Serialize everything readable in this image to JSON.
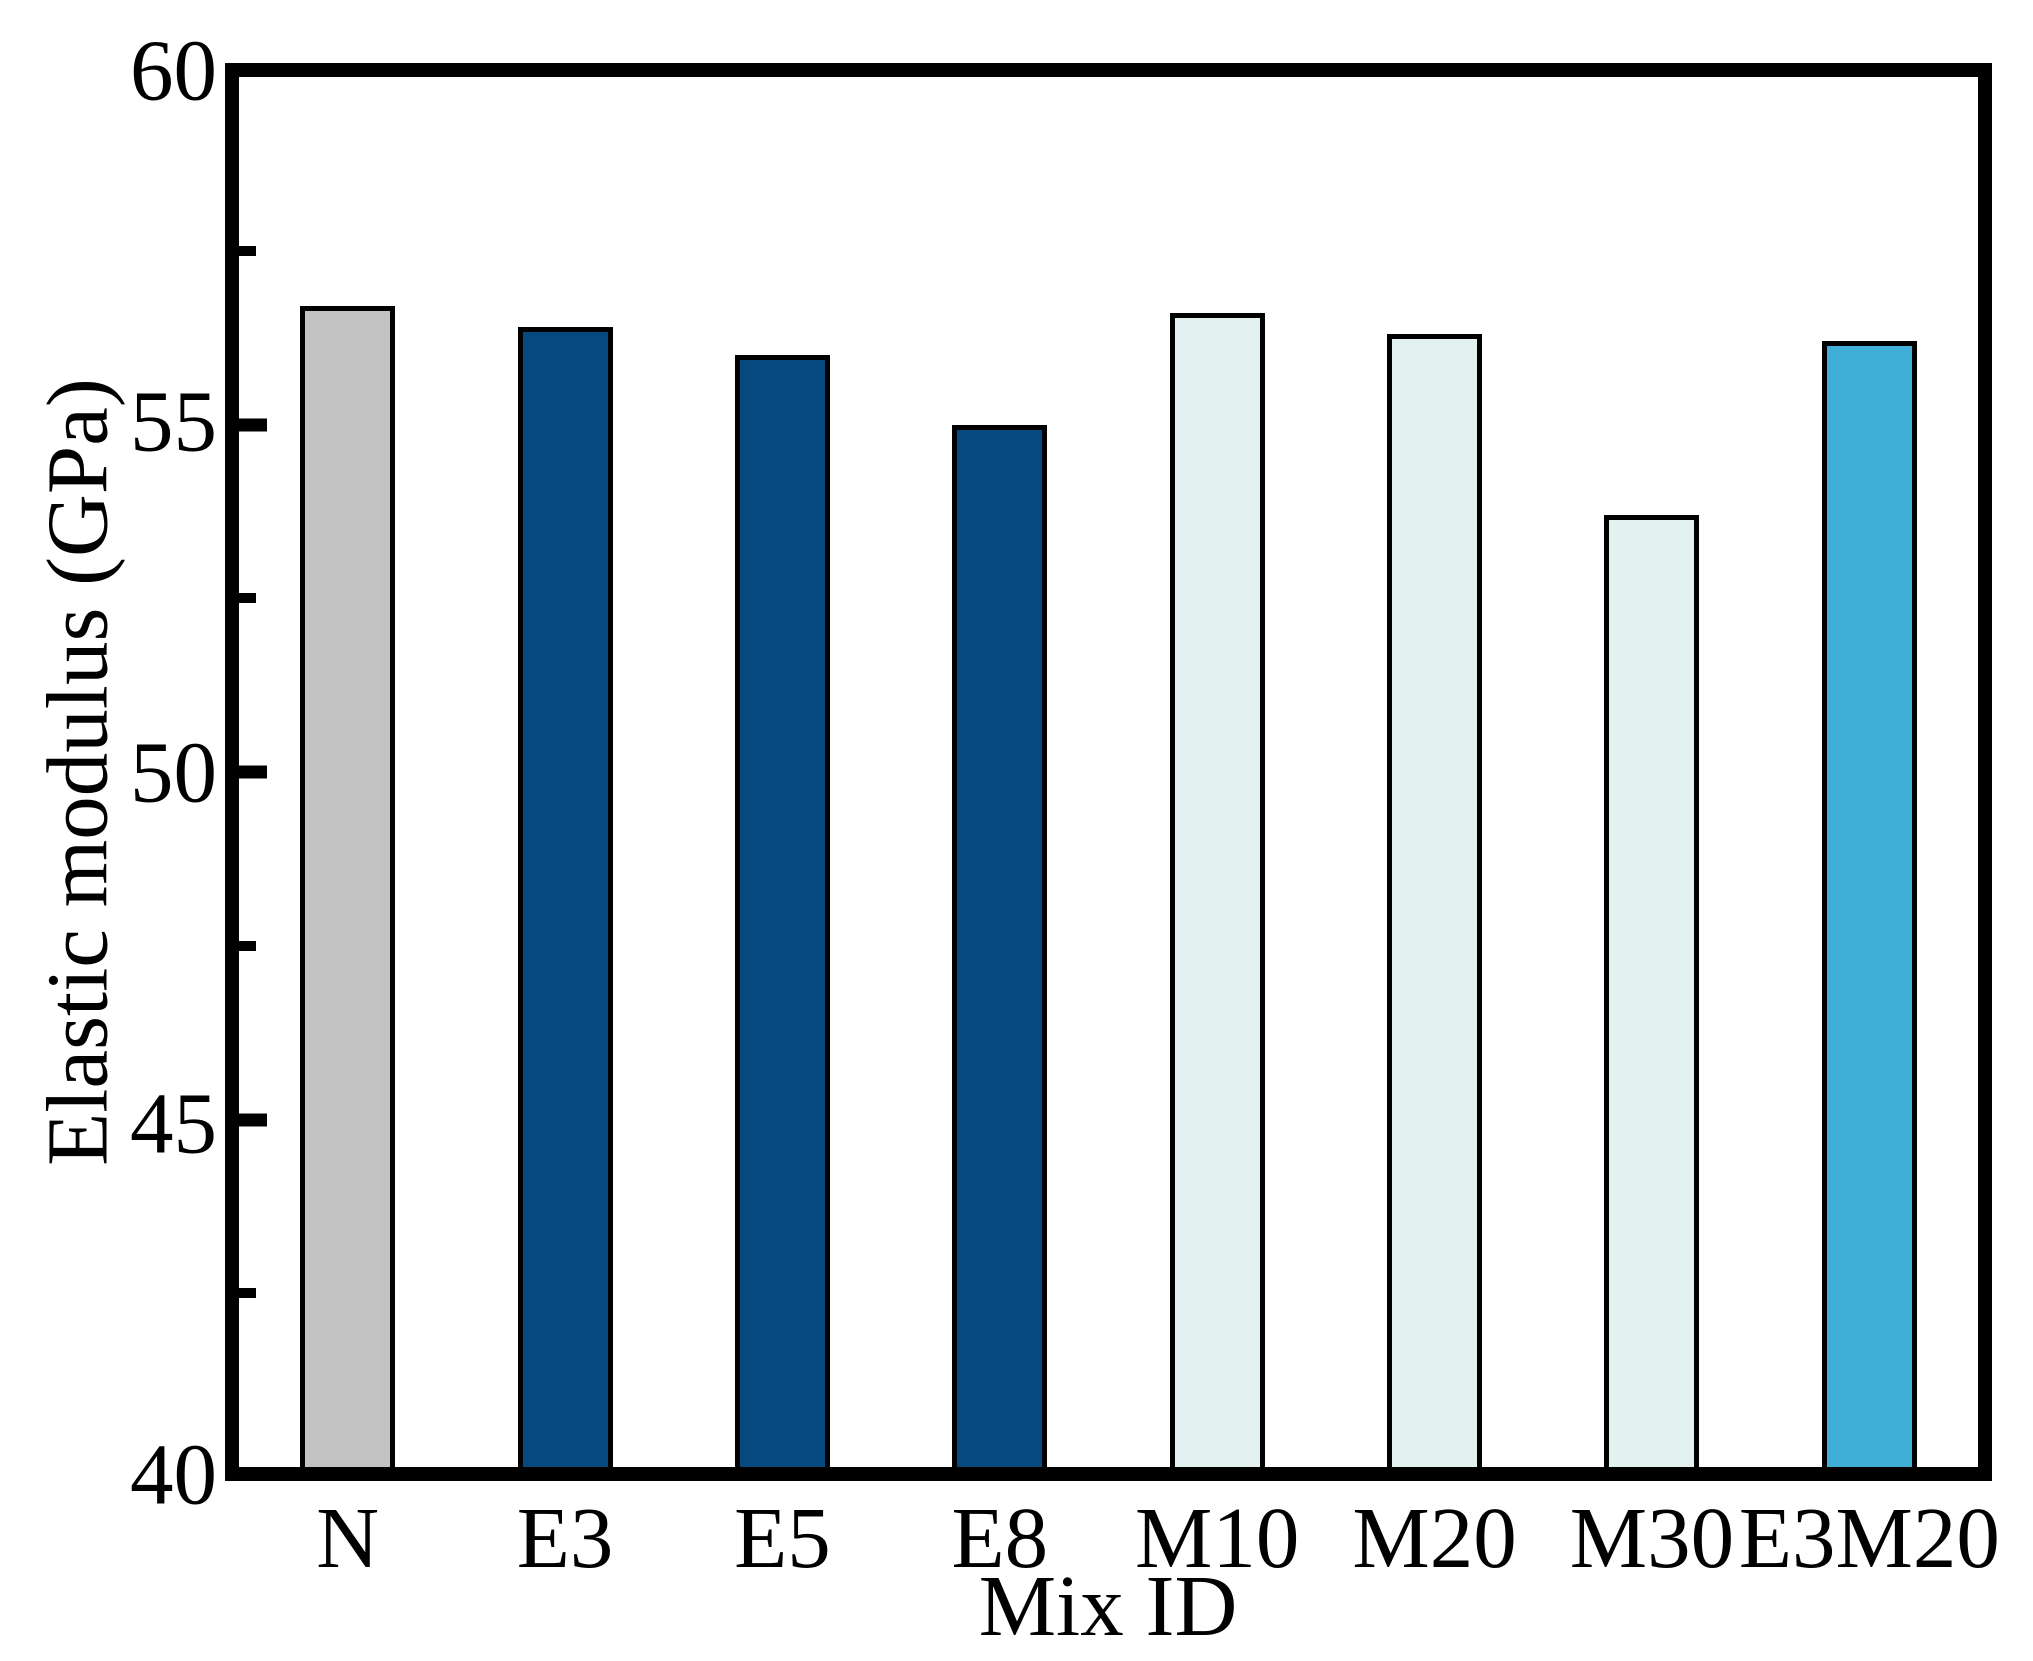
{
  "figure": {
    "background": "#ffffff",
    "text_color": "#000000",
    "axis_color": "#000000"
  },
  "chart_data": {
    "type": "bar",
    "title": "",
    "xlabel": "Mix ID",
    "ylabel": "Elastic modulus (GPa)",
    "categories": [
      "N",
      "E3",
      "E5",
      "E8",
      "M10",
      "M20",
      "M30",
      "E3M20"
    ],
    "values": [
      56.7,
      56.4,
      56.0,
      55.0,
      56.6,
      56.3,
      53.7,
      56.2
    ],
    "bar_colors": [
      "#c2c2c2",
      "#05497e",
      "#05497e",
      "#05497e",
      "#e3f1f1",
      "#e3f1f1",
      "#e3f1f1",
      "#3fafd8"
    ],
    "bar_outline_color": "#000000",
    "ylim": [
      40,
      60
    ],
    "yticks": [
      40,
      45,
      50,
      55,
      60
    ],
    "ytick_labels": [
      "40",
      "45",
      "50",
      "55",
      "60"
    ],
    "yticks_minor": [
      42.5,
      47.5,
      52.5,
      57.5
    ],
    "tick_direction": "in",
    "grid": false,
    "legend": "none"
  }
}
